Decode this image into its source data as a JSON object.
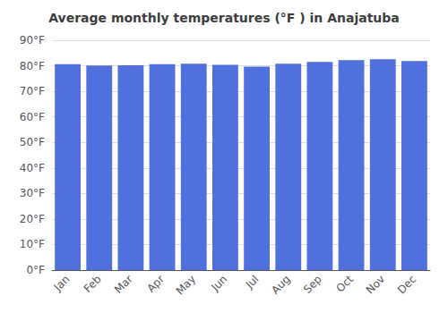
{
  "chart_data": {
    "type": "bar",
    "title": "Average monthly temperatures (°F ) in Anajatuba",
    "categories": [
      "Jan",
      "Feb",
      "Mar",
      "Apr",
      "May",
      "Jun",
      "Jul",
      "Aug",
      "Sep",
      "Oct",
      "Nov",
      "Dec"
    ],
    "values": [
      80.6,
      80.1,
      80.2,
      80.6,
      80.8,
      80.4,
      79.7,
      80.8,
      81.5,
      82.2,
      82.6,
      81.9
    ],
    "ylim": [
      0,
      90
    ],
    "yticks": [
      {
        "value": 0,
        "label": "0°F"
      },
      {
        "value": 10,
        "label": "10°F"
      },
      {
        "value": 20,
        "label": "20°F"
      },
      {
        "value": 30,
        "label": "30°F"
      },
      {
        "value": 40,
        "label": "40°F"
      },
      {
        "value": 50,
        "label": "50°F"
      },
      {
        "value": 60,
        "label": "60°F"
      },
      {
        "value": 70,
        "label": "70°F"
      },
      {
        "value": 80,
        "label": "80°F"
      },
      {
        "value": 90,
        "label": "90°F"
      }
    ],
    "grid": true
  }
}
